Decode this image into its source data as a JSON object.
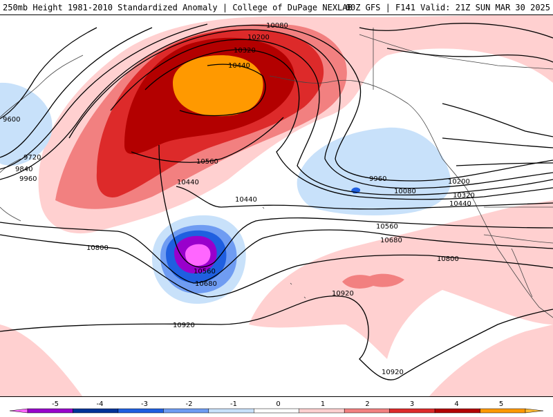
{
  "header": {
    "title_left": "250mb Height 1981-2010 Standardized Anomaly | College of DuPage NEXLAB",
    "title_right": "00Z GFS | F141 Valid: 21Z SUN MAR 30 2025"
  },
  "contour_labels": {
    "l1": "10080",
    "l2": "10200",
    "l3": "10320",
    "l4": "10440",
    "l5": "9600",
    "l6": "9720",
    "l7": "9840",
    "l8": "9960",
    "l9": "10560",
    "l10": "10440",
    "l11": "10440",
    "l12": "9960",
    "l13": "10080",
    "l14": "10200",
    "l15": "10320",
    "l16": "10440",
    "l17": "10560",
    "l18": "10680",
    "l19": "10800",
    "l20": "10800",
    "l21": "10560",
    "l22": "10680",
    "l23": "10920",
    "l24": "10920",
    "l25": "10920"
  },
  "colorbar": {
    "labels": [
      "-5",
      "-4",
      "-3",
      "-2",
      "-1",
      "0",
      "1",
      "2",
      "3",
      "4",
      "5"
    ],
    "colors": [
      "#ff66ff",
      "#9900cc",
      "#003399",
      "#1f5fe0",
      "#6f9cf2",
      "#c8e1fa",
      "#ffffff",
      "#ffd0d0",
      "#f28080",
      "#dd2a2a",
      "#b30000",
      "#ff9900",
      "#ffbb33"
    ]
  }
}
